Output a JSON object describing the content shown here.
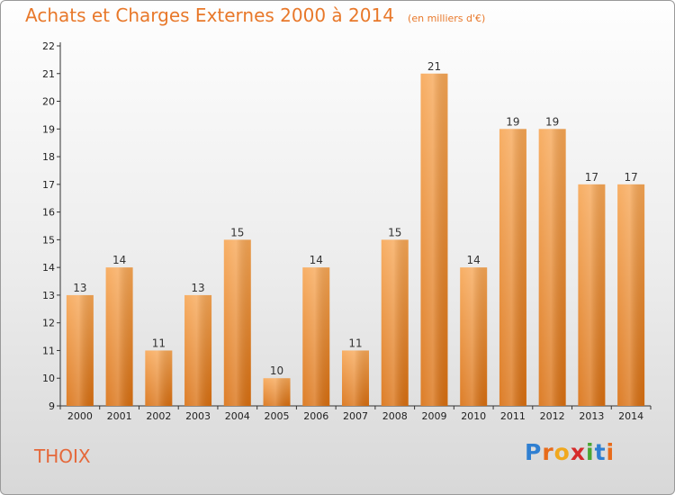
{
  "chart_data": {
    "type": "bar",
    "title": "Achats et Charges Externes 2000 à 2014",
    "subtitle": "(en milliers d'€)",
    "xlabel": "",
    "ylabel": "",
    "categories": [
      "2000",
      "2001",
      "2002",
      "2003",
      "2004",
      "2005",
      "2006",
      "2007",
      "2008",
      "2009",
      "2010",
      "2011",
      "2012",
      "2013",
      "2014"
    ],
    "values": [
      13,
      14,
      11,
      13,
      15,
      10,
      14,
      11,
      15,
      21,
      14,
      19,
      19,
      17,
      17
    ],
    "ylim": [
      9,
      22
    ],
    "yticks": [
      9,
      10,
      11,
      12,
      13,
      14,
      15,
      16,
      17,
      18,
      19,
      20,
      21,
      22
    ],
    "grid": false,
    "legend": "none"
  },
  "commune": "THOIX",
  "logo": {
    "letters": [
      "P",
      "r",
      "o",
      "x",
      "i",
      "t",
      "i"
    ],
    "colors": [
      "#2f7fd1",
      "#e86b1a",
      "#f0a81e",
      "#d62b2b",
      "#4aa632",
      "#2f7fd1",
      "#e86b1a"
    ]
  },
  "colors": {
    "bar_light": "#f7a654",
    "bar_dark": "#d96f10",
    "title": "#e8782a",
    "axis": "#333333"
  }
}
